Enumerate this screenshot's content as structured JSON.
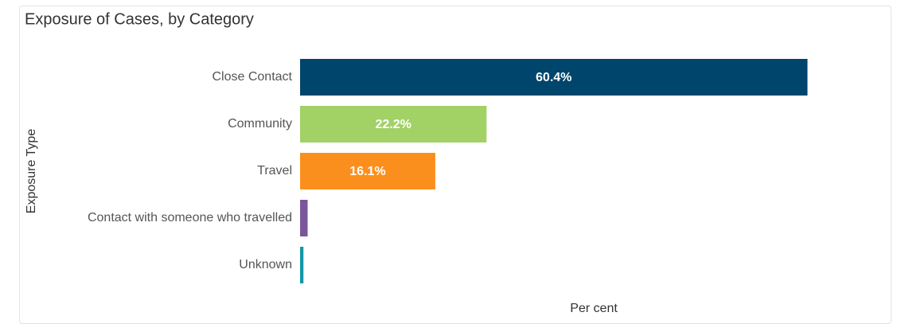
{
  "chart_data": {
    "type": "hbar",
    "title": "Exposure of Cases, by Category",
    "x_label": "Per cent",
    "y_label": "Exposure Type",
    "categories": [
      "Close Contact",
      "Community",
      "Travel",
      "Contact with someone who travelled",
      "Unknown"
    ],
    "values": [
      60.4,
      22.2,
      16.1,
      0.9,
      0.4
    ],
    "value_labels": [
      "60.4%",
      "22.2%",
      "16.1%",
      null,
      null
    ],
    "colors": [
      "#00456b",
      "#a2d165",
      "#fb8f1d",
      "#7a579b",
      "#1296a8"
    ],
    "xlim": [
      0,
      65
    ]
  }
}
